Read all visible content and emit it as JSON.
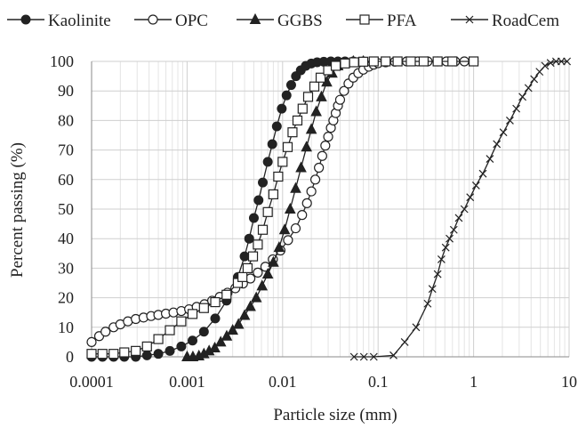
{
  "chart_data": {
    "type": "scatter",
    "title": "",
    "xlabel": "Particle size (mm)",
    "ylabel": "Percent passing (%)",
    "xscale": "log",
    "xlim": [
      0.0001,
      10
    ],
    "ylim": [
      0,
      100
    ],
    "xticks": [
      0.0001,
      0.001,
      0.01,
      0.1,
      1,
      10
    ],
    "xtick_labels": [
      "0.0001",
      "0.001",
      "0.01",
      "0.1",
      "1",
      "10"
    ],
    "yticks": [
      0,
      10,
      20,
      30,
      40,
      50,
      60,
      70,
      80,
      90,
      100
    ],
    "ytick_labels": [
      "0",
      "10",
      "20",
      "30",
      "40",
      "50",
      "60",
      "70",
      "80",
      "90",
      "100"
    ],
    "grid": {
      "major": true,
      "minor_x": true
    },
    "legend_position": "top",
    "series": [
      {
        "name": "Kaolinite",
        "marker": "filled-circle",
        "x": [
          0.0001,
          0.00013,
          0.00017,
          0.00022,
          0.00029,
          0.00038,
          0.0005,
          0.00066,
          0.00087,
          0.00114,
          0.0015,
          0.00197,
          0.00259,
          0.0034,
          0.004,
          0.00447,
          0.005,
          0.0056,
          0.0062,
          0.007,
          0.0078,
          0.0087,
          0.0098,
          0.011,
          0.0123,
          0.0138,
          0.0155,
          0.0175,
          0.02,
          0.023,
          0.027,
          0.032,
          0.038,
          0.045,
          0.055,
          0.07,
          0.09,
          0.12,
          0.16,
          0.2
        ],
        "y": [
          0,
          0,
          0,
          0,
          0,
          0.5,
          1,
          2,
          3.5,
          5.5,
          8.5,
          13,
          19,
          27,
          34,
          40,
          47,
          53,
          59,
          66,
          72,
          78,
          84,
          88.5,
          92,
          95,
          97,
          98.5,
          99.3,
          99.7,
          99.9,
          100,
          100,
          100,
          100,
          100,
          100,
          100,
          100,
          100
        ]
      },
      {
        "name": "OPC",
        "marker": "open-circle",
        "x": [
          0.0001,
          0.00012,
          0.00014,
          0.00017,
          0.0002,
          0.00024,
          0.00029,
          0.00035,
          0.00042,
          0.0005,
          0.0006,
          0.00072,
          0.00087,
          0.00105,
          0.00126,
          0.00152,
          0.00183,
          0.0022,
          0.00265,
          0.0032,
          0.00385,
          0.0046,
          0.0055,
          0.0066,
          0.0079,
          0.0095,
          0.0114,
          0.0137,
          0.016,
          0.018,
          0.02,
          0.022,
          0.024,
          0.026,
          0.028,
          0.03,
          0.032,
          0.034,
          0.036,
          0.038,
          0.04,
          0.044,
          0.049,
          0.055,
          0.062,
          0.07,
          0.08,
          0.09,
          0.1,
          0.12,
          0.15,
          0.2,
          0.26,
          0.33,
          0.42,
          0.52,
          0.64,
          0.8
        ],
        "y": [
          5,
          7,
          8.5,
          10,
          11,
          12,
          12.8,
          13.3,
          13.8,
          14.2,
          14.6,
          15,
          15.5,
          16.1,
          16.9,
          17.8,
          19,
          20.3,
          21.7,
          23.2,
          24.8,
          26.5,
          28.5,
          30.5,
          33,
          36,
          39.5,
          43.5,
          48,
          52,
          56,
          60,
          64,
          68,
          71.5,
          74.5,
          77.5,
          80,
          82.5,
          85,
          87,
          90,
          92.5,
          94.5,
          96,
          97.2,
          98.2,
          98.9,
          99.4,
          99.7,
          99.9,
          100,
          100,
          100,
          100,
          100,
          100,
          100
        ]
      },
      {
        "name": "GGBS",
        "marker": "filled-triangle",
        "x": [
          0.001,
          0.00115,
          0.00133,
          0.0015,
          0.0017,
          0.00195,
          0.00225,
          0.0026,
          0.003,
          0.00345,
          0.004,
          0.0046,
          0.0053,
          0.0061,
          0.007,
          0.008,
          0.0092,
          0.0105,
          0.012,
          0.0137,
          0.0156,
          0.0178,
          0.02,
          0.0225,
          0.0255,
          0.029,
          0.033,
          0.038,
          0.045,
          0.055,
          0.07
        ],
        "y": [
          0,
          0,
          0.3,
          1,
          2,
          3,
          5,
          7,
          9,
          11,
          14,
          17,
          20,
          24,
          28,
          32,
          37,
          43,
          50,
          57,
          64,
          71,
          77,
          83,
          88,
          93,
          96,
          98.5,
          99.5,
          100,
          100
        ]
      },
      {
        "name": "PFA",
        "marker": "open-square",
        "x": [
          0.0001,
          0.00013,
          0.00017,
          0.00022,
          0.00029,
          0.00038,
          0.0005,
          0.00066,
          0.00087,
          0.00114,
          0.0015,
          0.00197,
          0.00259,
          0.0034,
          0.0038,
          0.0043,
          0.0049,
          0.0055,
          0.0062,
          0.007,
          0.008,
          0.009,
          0.01,
          0.0113,
          0.0127,
          0.0143,
          0.0162,
          0.0185,
          0.0215,
          0.025,
          0.03,
          0.036,
          0.045,
          0.056,
          0.07,
          0.09,
          0.12,
          0.16,
          0.22,
          0.3,
          0.42,
          0.6,
          1.0
        ],
        "y": [
          1,
          1,
          1,
          1.5,
          2,
          3.5,
          6,
          9,
          12,
          14.5,
          16.5,
          18.5,
          21,
          25,
          27,
          30,
          34,
          38,
          43,
          49,
          55,
          61,
          66,
          71,
          76,
          80,
          84,
          88,
          91.5,
          94.5,
          97,
          98.5,
          99.3,
          99.7,
          99.9,
          100,
          100,
          100,
          100,
          100,
          100,
          100,
          100
        ]
      },
      {
        "name": "RoadCem",
        "marker": "x",
        "x": [
          0.056,
          0.071,
          0.09,
          0.145,
          0.19,
          0.25,
          0.33,
          0.37,
          0.42,
          0.46,
          0.51,
          0.56,
          0.62,
          0.7,
          0.8,
          0.92,
          1.06,
          1.25,
          1.48,
          1.75,
          2.05,
          2.4,
          2.8,
          3.25,
          3.75,
          4.3,
          4.9,
          5.6,
          6.4,
          7.3,
          8.3,
          9.5
        ],
        "y": [
          0,
          0,
          0,
          0.5,
          5,
          10,
          18,
          23,
          28,
          33,
          37,
          40,
          43,
          47,
          50,
          54,
          58,
          62,
          67,
          72,
          76,
          80,
          84,
          88,
          91,
          94,
          96.5,
          98.5,
          99.5,
          100,
          100,
          100
        ]
      }
    ]
  }
}
